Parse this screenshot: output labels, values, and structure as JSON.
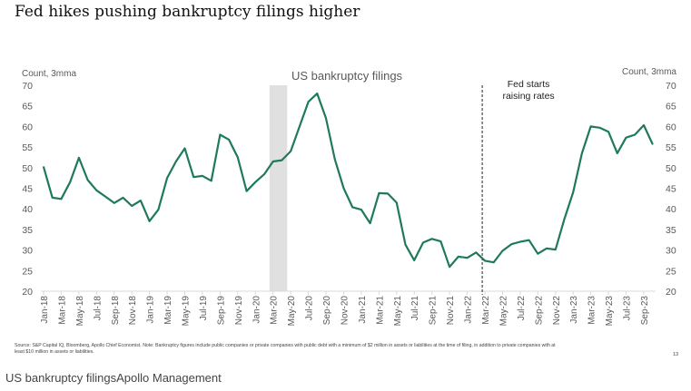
{
  "header": {
    "title": "Fed hikes pushing bankruptcy filings higher"
  },
  "chart_data": {
    "type": "line",
    "title": "US bankruptcy filings",
    "ylabel_left": "Count, 3mma",
    "ylabel_right": "Count, 3mma",
    "ylim": [
      20,
      70
    ],
    "yticks": [
      20,
      25,
      30,
      35,
      40,
      45,
      50,
      55,
      60,
      65,
      70
    ],
    "x_start": "Jan-18",
    "x_tick_labels": [
      "Jan-18",
      "Mar-18",
      "May-18",
      "Jul-18",
      "Sep-18",
      "Nov-18",
      "Jan-19",
      "Mar-19",
      "May-19",
      "Jul-19",
      "Sep-19",
      "Nov-19",
      "Jan-20",
      "Mar-20",
      "May-20",
      "Jul-20",
      "Sep-20",
      "Nov-20",
      "Jan-21",
      "Mar-21",
      "May-21",
      "Jul-21",
      "Sep-21",
      "Nov-21",
      "Jan-22",
      "Mar-22",
      "May-22",
      "Jul-22",
      "Sep-22",
      "Nov-22",
      "Jan-23",
      "Mar-23",
      "May-23",
      "Jul-23",
      "Sep-23"
    ],
    "series": [
      {
        "name": "US bankruptcy filings",
        "color": "#1f7a5c",
        "values": [
          50.2,
          42.7,
          42.4,
          46.5,
          52.4,
          47,
          44.5,
          43,
          41.4,
          42.7,
          40.7,
          42,
          37,
          39.8,
          47.5,
          51.5,
          54.7,
          47.7,
          48,
          46.8,
          58,
          56.8,
          52.5,
          44.3,
          46.5,
          48.4,
          51.5,
          51.8,
          54,
          60,
          66,
          68,
          62,
          52,
          45,
          40.4,
          39.8,
          36.5,
          43.8,
          43.7,
          41.5,
          31.3,
          27.5,
          31.8,
          32.7,
          32.1,
          25.9,
          28.4,
          28.1,
          29.4,
          27.4,
          27,
          29.8,
          31.4,
          32,
          32.4,
          29.1,
          30.4,
          30.1,
          37.5,
          44,
          53.5,
          60,
          59.7,
          58.7,
          53.5,
          57.3,
          58,
          60.3,
          55.7
        ]
      }
    ],
    "shaded_period": {
      "from_month_index": 25.6,
      "to_month_index": 27.6,
      "color": "#e0e0e0"
    },
    "annotation": {
      "text_line1": "Fed starts",
      "text_line2": "raising rates",
      "month_index": 49.7
    },
    "grid": false
  },
  "footer": {
    "source": "Source: S&P Capital IQ, Bloomberg, Apollo Chief Economist. Note: Bankruptcy figures include public companies or private companies with public debt with a minimum of $2 million in assets or liabilities at the time of filing, in addition to private companies with at least $10 million in assets or liabilities.",
    "page_number": "13",
    "caption": "US bankruptcy filingsApollo Management"
  }
}
